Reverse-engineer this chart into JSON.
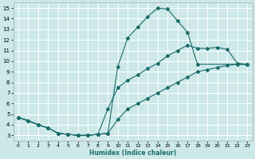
{
  "xlabel": "Humidex (Indice chaleur)",
  "bg_color": "#cce8e8",
  "grid_color": "#ffffff",
  "line_color": "#1a6b6b",
  "xlim_min": -0.5,
  "xlim_max": 23.5,
  "ylim_min": 2.5,
  "ylim_max": 15.5,
  "xticks": [
    0,
    1,
    2,
    3,
    4,
    5,
    6,
    7,
    8,
    9,
    10,
    11,
    12,
    13,
    14,
    15,
    16,
    17,
    18,
    19,
    20,
    21,
    22,
    23
  ],
  "yticks": [
    3,
    4,
    5,
    6,
    7,
    8,
    9,
    10,
    11,
    12,
    13,
    14,
    15
  ],
  "curve_steep_x": [
    0,
    2,
    3,
    4,
    5,
    6,
    7,
    8,
    9,
    10,
    11,
    12,
    13,
    14,
    15,
    16,
    17,
    18,
    23
  ],
  "curve_steep_y": [
    4.7,
    4.0,
    3.7,
    3.2,
    3.1,
    3.0,
    3.0,
    3.1,
    3.2,
    9.5,
    12.2,
    13.2,
    14.2,
    15.0,
    14.9,
    13.8,
    12.7,
    9.7,
    9.7
  ],
  "curve_mid_x": [
    0,
    1,
    2,
    3,
    4,
    5,
    6,
    7,
    8,
    9,
    10,
    11,
    12,
    13,
    14,
    15,
    16,
    17,
    18,
    19,
    20,
    21,
    22,
    23
  ],
  "curve_mid_y": [
    4.7,
    4.4,
    4.0,
    3.7,
    3.2,
    3.1,
    3.0,
    3.0,
    3.1,
    5.5,
    7.5,
    8.2,
    8.7,
    9.3,
    9.8,
    10.5,
    11.0,
    11.5,
    11.2,
    11.2,
    11.3,
    11.1,
    9.8,
    9.7
  ],
  "curve_low_x": [
    0,
    1,
    2,
    3,
    4,
    5,
    6,
    7,
    8,
    9,
    10,
    11,
    12,
    13,
    14,
    15,
    16,
    17,
    18,
    19,
    20,
    21,
    22,
    23
  ],
  "curve_low_y": [
    4.7,
    4.4,
    4.0,
    3.7,
    3.2,
    3.1,
    3.0,
    3.0,
    3.1,
    3.2,
    4.5,
    5.5,
    6.0,
    6.5,
    7.0,
    7.5,
    8.0,
    8.5,
    9.0,
    9.2,
    9.4,
    9.6,
    9.7,
    9.7
  ]
}
